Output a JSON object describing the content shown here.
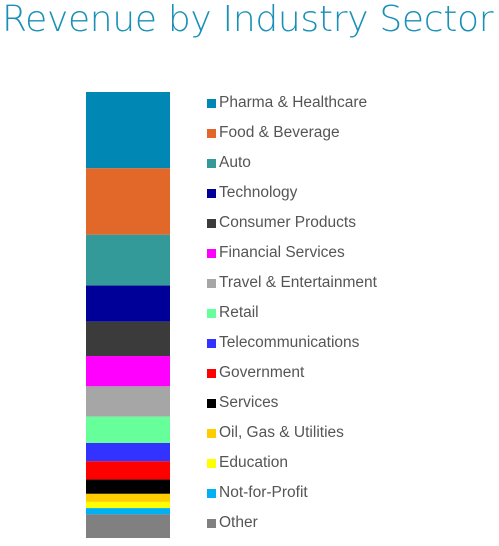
{
  "chart_data": {
    "type": "bar",
    "subtype": "single stacked bar (100% composition)",
    "title": "Revenue by Industry Sector",
    "legend_position": "right",
    "grid": false,
    "series": [
      {
        "name": "Pharma & Healthcare",
        "value": 17.1,
        "color": "#0087b4"
      },
      {
        "name": "Food & Beverage",
        "value": 14.9,
        "color": "#e2682a"
      },
      {
        "name": "Auto",
        "value": 11.4,
        "color": "#339999"
      },
      {
        "name": "Technology",
        "value": 8.1,
        "color": "#000099"
      },
      {
        "name": "Consumer Products",
        "value": 7.7,
        "color": "#3b3b3b"
      },
      {
        "name": "Financial Services",
        "value": 6.8,
        "color": "#ff00ff"
      },
      {
        "name": "Travel & Entertainment",
        "value": 6.8,
        "color": "#a6a6a6"
      },
      {
        "name": "Retail",
        "value": 5.9,
        "color": "#66ff99"
      },
      {
        "name": "Telecommunications",
        "value": 4.1,
        "color": "#3333ff"
      },
      {
        "name": "Government",
        "value": 4.1,
        "color": "#ff0000"
      },
      {
        "name": "Services",
        "value": 3.2,
        "color": "#000000"
      },
      {
        "name": "Oil, Gas & Utilities",
        "value": 1.8,
        "color": "#ffcc00"
      },
      {
        "name": "Education",
        "value": 1.4,
        "color": "#ffff00"
      },
      {
        "name": "Not-for-Profit",
        "value": 1.4,
        "color": "#00b0f0"
      },
      {
        "name": "Other",
        "value": 5.3,
        "color": "#808080"
      }
    ]
  },
  "theme": {
    "title_color": "#1a90b8",
    "legend_text_color": "#555555"
  }
}
